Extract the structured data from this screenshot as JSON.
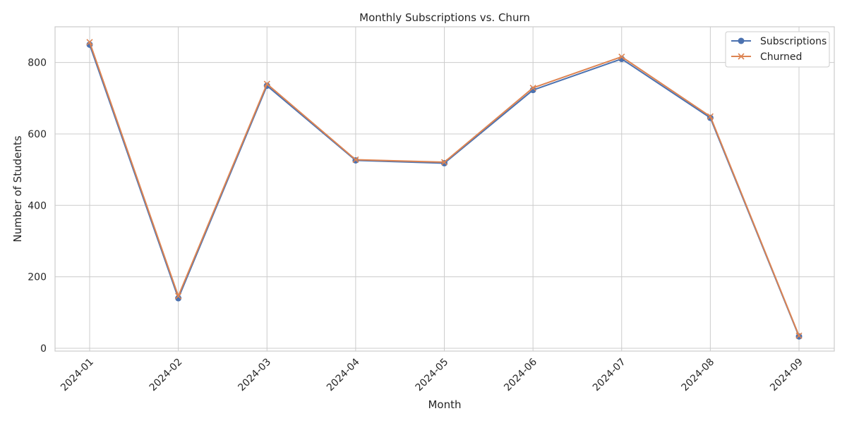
{
  "chart_data": {
    "type": "line",
    "title": "Monthly Subscriptions vs. Churn",
    "xlabel": "Month",
    "ylabel": "Number of Students",
    "categories": [
      "2024-01",
      "2024-02",
      "2024-03",
      "2024-04",
      "2024-05",
      "2024-06",
      "2024-07",
      "2024-08",
      "2024-09"
    ],
    "ylim": [
      -8,
      900
    ],
    "yticks": [
      0,
      200,
      400,
      600,
      800
    ],
    "grid": true,
    "legend_position": "top-right",
    "series": [
      {
        "name": "Subscriptions",
        "values": [
          850,
          140,
          735,
          526,
          518,
          723,
          810,
          645,
          33
        ],
        "color": "#4c72b0",
        "marker": "circle"
      },
      {
        "name": "Churned",
        "values": [
          857,
          146,
          740,
          528,
          521,
          729,
          816,
          649,
          35
        ],
        "color": "#dd8452",
        "marker": "x"
      }
    ]
  }
}
